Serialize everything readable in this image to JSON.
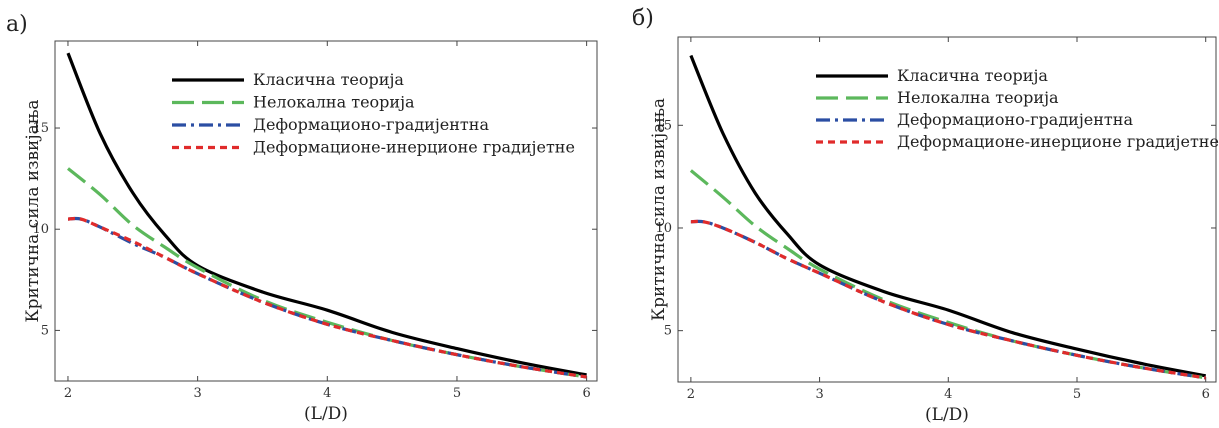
{
  "panels": [
    {
      "label": "а)"
    },
    {
      "label": "б)"
    }
  ],
  "chart_data": [
    {
      "type": "line",
      "title": "",
      "xlabel": "(L/D)",
      "ylabel": "Критична сила извијања",
      "xlim": [
        1.9,
        6.08
      ],
      "ylim": [
        2.5,
        19.3
      ],
      "xticks": [
        2,
        3,
        4,
        5,
        6
      ],
      "yticks": [
        5,
        10,
        15
      ],
      "grid": false,
      "legend_position": "top-right",
      "series": [
        {
          "name": "Класична теорија",
          "color": "#000000",
          "dash": "solid",
          "x": [
            2,
            2.25,
            2.5,
            2.75,
            3,
            3.5,
            4,
            4.5,
            5,
            5.5,
            6
          ],
          "y": [
            18.7,
            14.7,
            11.8,
            9.7,
            8.2,
            6.9,
            6.0,
            4.9,
            4.1,
            3.4,
            2.8
          ]
        },
        {
          "name": "Нелокална теорија",
          "color": "#5cb85c",
          "dash": "long",
          "x": [
            2,
            2.25,
            2.5,
            2.75,
            3,
            3.5,
            4,
            4.5,
            5,
            5.5,
            6
          ],
          "y": [
            13.0,
            11.7,
            10.2,
            9.1,
            8.1,
            6.5,
            5.4,
            4.5,
            3.8,
            3.2,
            2.7
          ]
        },
        {
          "name": "Деформационо-градијентна",
          "color": "#2b4ea3",
          "dash": "dashdot",
          "x": [
            2,
            2.1,
            2.25,
            2.5,
            2.75,
            3,
            3.5,
            4,
            4.5,
            5,
            5.5,
            6
          ],
          "y": [
            10.5,
            10.5,
            10.1,
            9.3,
            8.6,
            7.8,
            6.4,
            5.3,
            4.5,
            3.8,
            3.2,
            2.7
          ]
        },
        {
          "name": "Деформационе-инерционе градијетне",
          "color": "#e02b2b",
          "dash": "short",
          "x": [
            2,
            2.1,
            2.25,
            2.5,
            2.75,
            3,
            3.5,
            4,
            4.5,
            5,
            5.5,
            6
          ],
          "y": [
            10.5,
            10.5,
            10.1,
            9.4,
            8.6,
            7.8,
            6.4,
            5.3,
            4.5,
            3.8,
            3.2,
            2.7
          ]
        }
      ]
    },
    {
      "type": "line",
      "title": "",
      "xlabel": "(L/D)",
      "ylabel": "Критична сила извијања",
      "xlim": [
        1.9,
        6.08
      ],
      "ylim": [
        2.5,
        19.3
      ],
      "xticks": [
        2,
        3,
        4,
        5,
        6
      ],
      "yticks": [
        5,
        10,
        15
      ],
      "grid": false,
      "legend_position": "top-right",
      "series": [
        {
          "name": "Класична теорија",
          "color": "#000000",
          "dash": "solid",
          "x": [
            2,
            2.25,
            2.5,
            2.75,
            3,
            3.5,
            4,
            4.5,
            5,
            5.5,
            6
          ],
          "y": [
            18.4,
            14.6,
            11.7,
            9.7,
            8.2,
            6.9,
            6.0,
            4.9,
            4.1,
            3.4,
            2.8
          ]
        },
        {
          "name": "Нелокална теорија",
          "color": "#5cb85c",
          "dash": "long",
          "x": [
            2,
            2.25,
            2.5,
            2.75,
            3,
            3.5,
            4,
            4.5,
            5,
            5.5,
            6
          ],
          "y": [
            12.8,
            11.5,
            10.1,
            9.0,
            8.0,
            6.5,
            5.4,
            4.5,
            3.8,
            3.2,
            2.7
          ]
        },
        {
          "name": "Деформационо-градијентна",
          "color": "#2b4ea3",
          "dash": "dashdot",
          "x": [
            2,
            2.1,
            2.25,
            2.5,
            2.75,
            3,
            3.5,
            4,
            4.5,
            5,
            5.5,
            6
          ],
          "y": [
            10.3,
            10.3,
            10.0,
            9.3,
            8.5,
            7.8,
            6.4,
            5.3,
            4.5,
            3.8,
            3.2,
            2.7
          ]
        },
        {
          "name": "Деформационе-инерционе градијетне",
          "color": "#e02b2b",
          "dash": "short",
          "x": [
            2,
            2.1,
            2.25,
            2.5,
            2.75,
            3,
            3.5,
            4,
            4.5,
            5,
            5.5,
            6
          ],
          "y": [
            10.3,
            10.3,
            10.0,
            9.3,
            8.5,
            7.8,
            6.4,
            5.3,
            4.5,
            3.8,
            3.2,
            2.7
          ]
        }
      ]
    }
  ]
}
